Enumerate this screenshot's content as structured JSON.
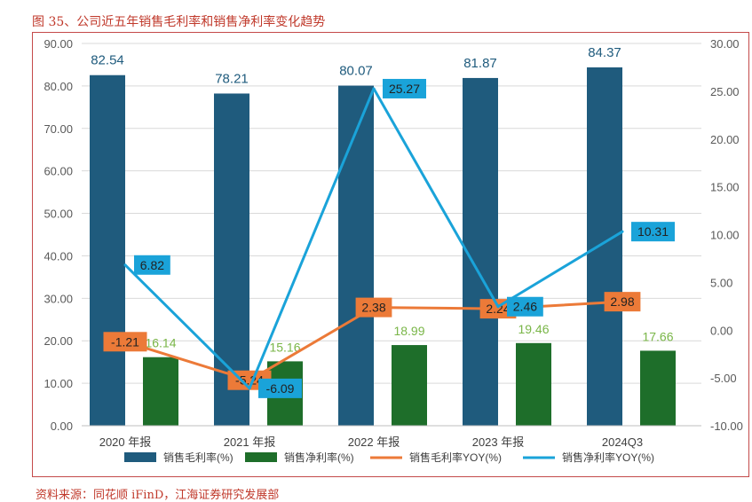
{
  "figure": {
    "title": "图 35、公司近五年销售毛利率和销售净利率变化趋势",
    "source": "资料来源：同花顺 iFinD，江海证券研究发展部"
  },
  "chart_data": {
    "type": "bar",
    "categories": [
      "2020 年报",
      "2021 年报",
      "2022 年报",
      "2023 年报",
      "2024Q3"
    ],
    "series": [
      {
        "name": "销售毛利率(%)",
        "type": "bar",
        "axis": "left",
        "color": "#1f5b7d",
        "values": [
          82.54,
          78.21,
          80.07,
          81.87,
          84.37
        ]
      },
      {
        "name": "销售净利率(%)",
        "type": "bar",
        "axis": "left",
        "color": "#1e6e2a",
        "values": [
          16.14,
          15.16,
          18.99,
          19.46,
          17.66
        ]
      },
      {
        "name": "销售毛利率YOY(%)",
        "type": "line",
        "axis": "right",
        "color": "#ec7a38",
        "values": [
          -1.21,
          -5.24,
          2.38,
          2.24,
          2.98
        ]
      },
      {
        "name": "销售净利率YOY(%)",
        "type": "line",
        "axis": "right",
        "color": "#1aa3d9",
        "values": [
          6.82,
          -6.09,
          25.27,
          2.46,
          10.31
        ]
      }
    ],
    "left_axis": {
      "min": 0,
      "max": 90,
      "step": 10,
      "ticks": [
        "0.00",
        "10.00",
        "20.00",
        "30.00",
        "40.00",
        "50.00",
        "60.00",
        "70.00",
        "80.00",
        "90.00"
      ]
    },
    "right_axis": {
      "min": -10,
      "max": 30,
      "step": 5,
      "ticks": [
        "-10.00",
        "-5.00",
        "0.00",
        "5.00",
        "10.00",
        "15.00",
        "20.00",
        "25.00",
        "30.00"
      ]
    },
    "grid": "horizontal",
    "legend": "bottom",
    "label_colors": {
      "gross_bar": "#1f5b7d",
      "net_bar": "#7ab648",
      "line_label_text": "#222222"
    }
  }
}
